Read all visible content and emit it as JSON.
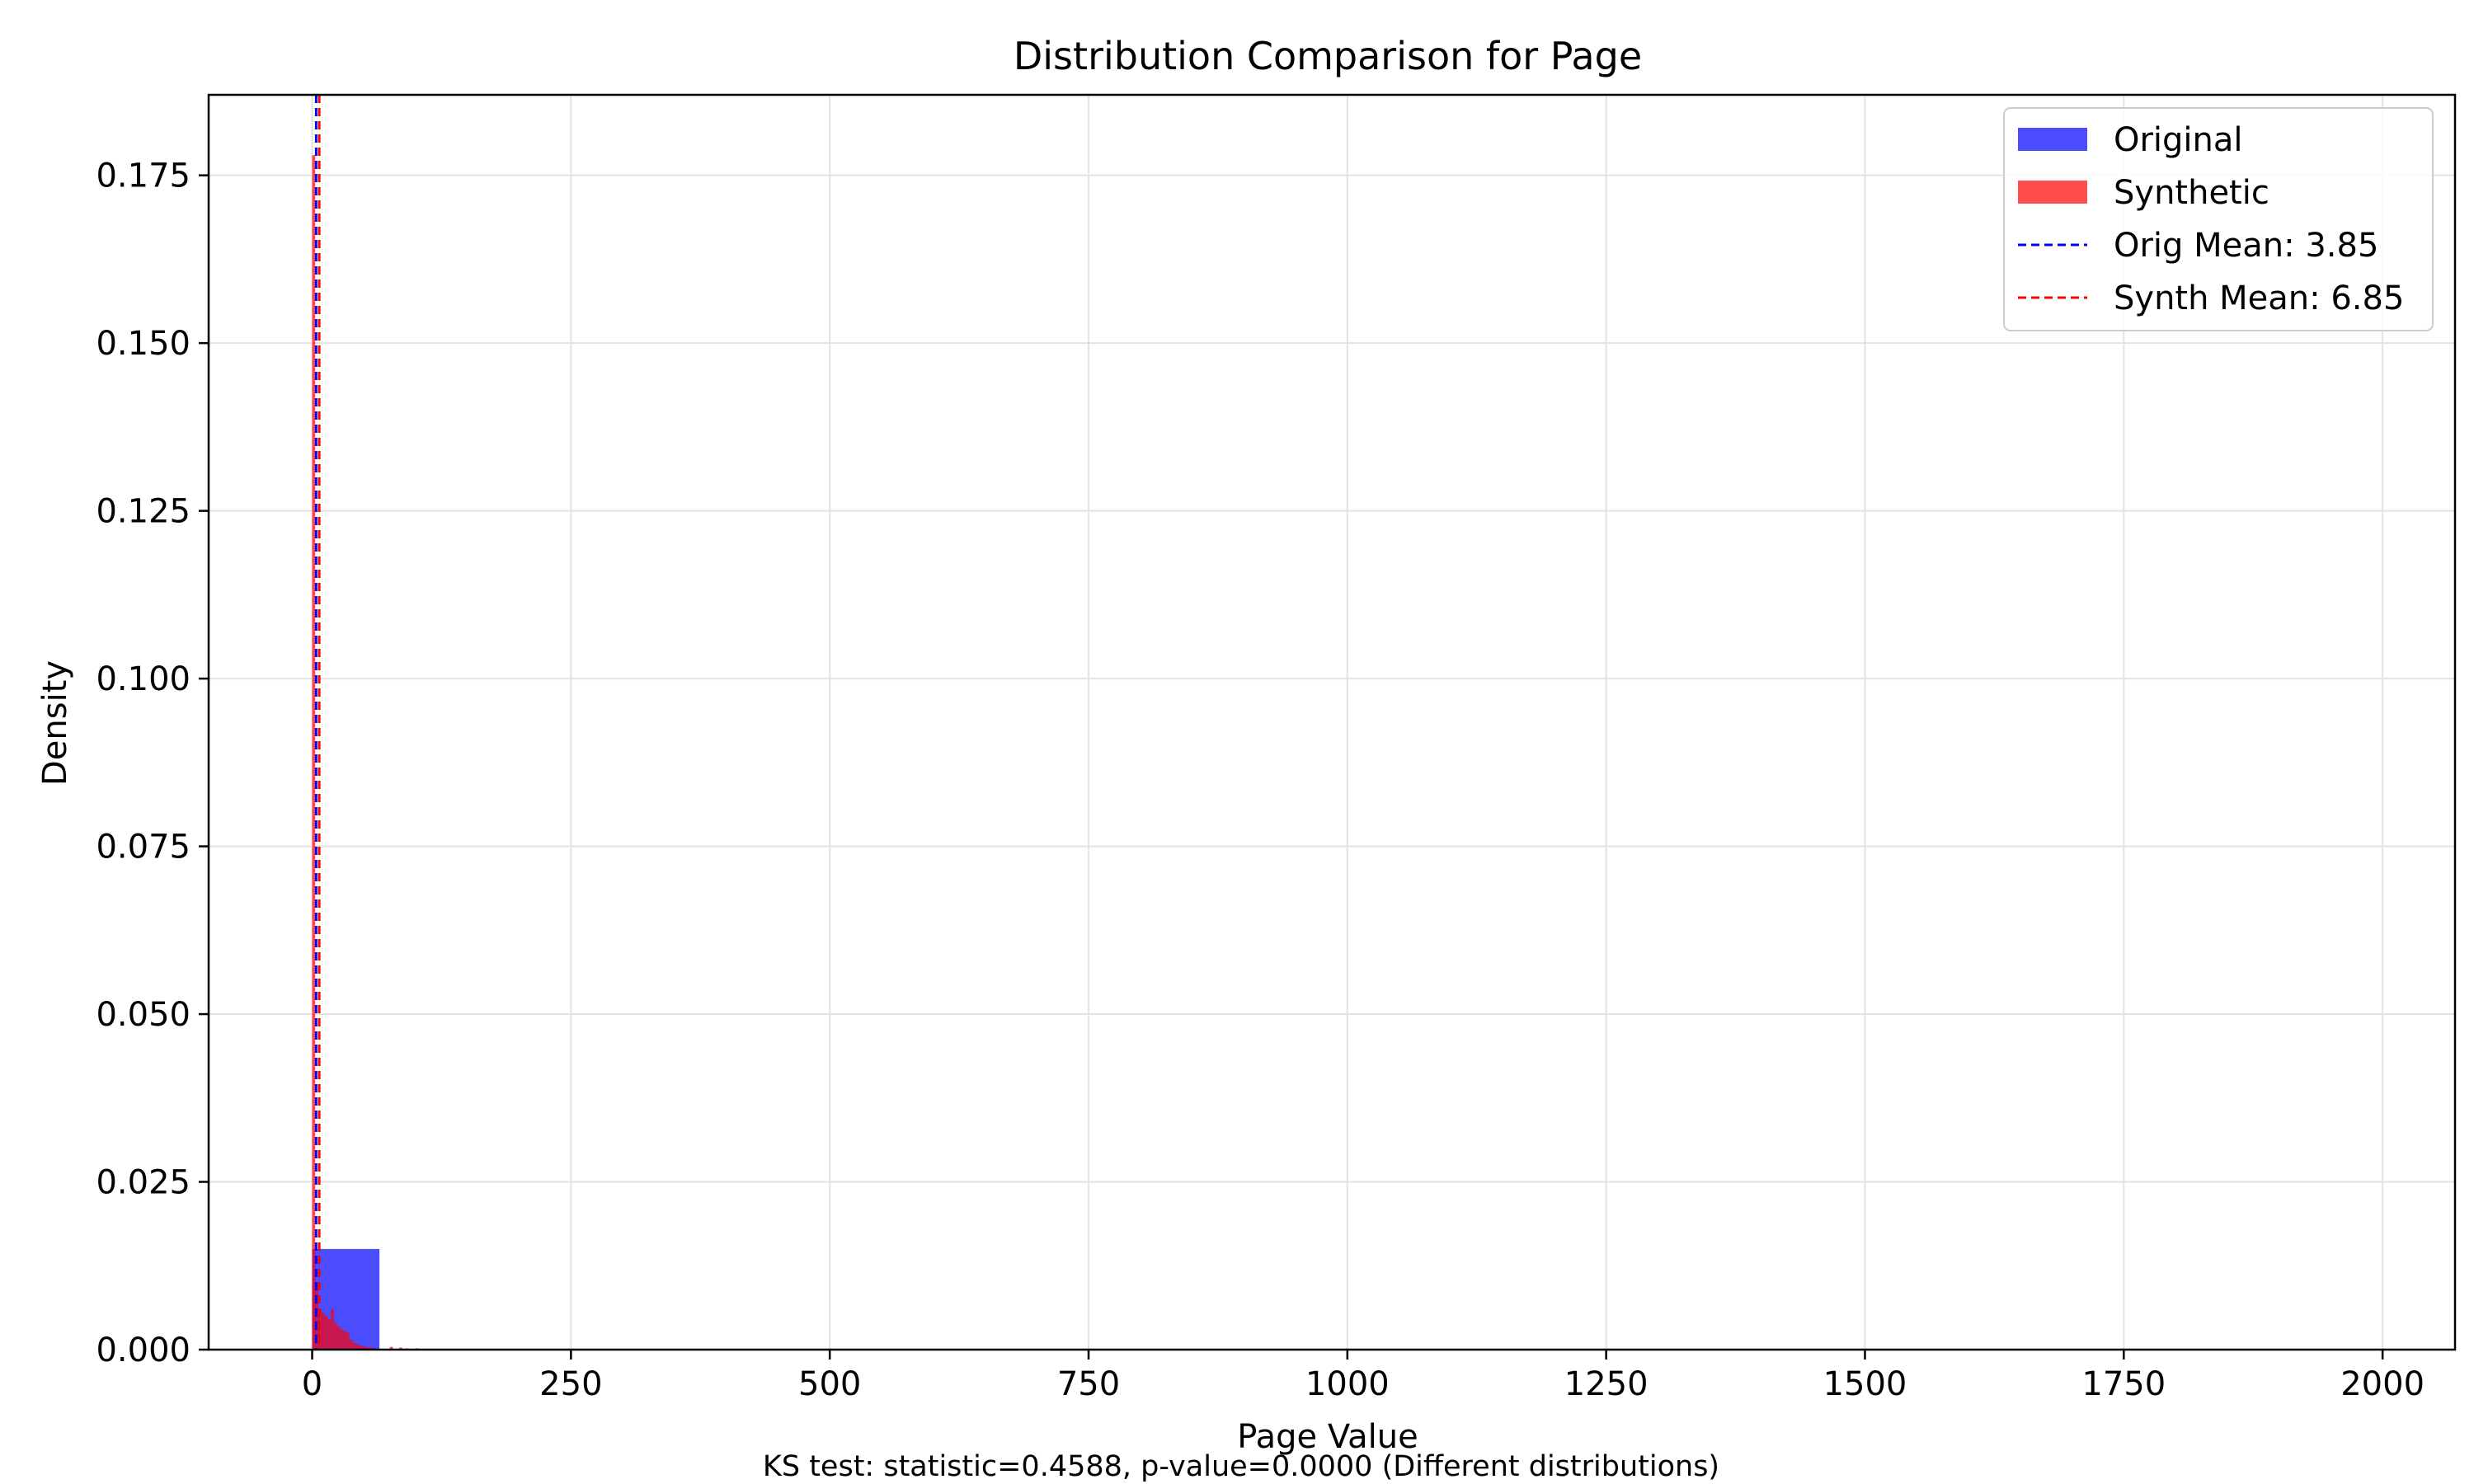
{
  "chart_data": {
    "type": "bar",
    "title": "Distribution Comparison for Page",
    "xlabel": "Page Value",
    "ylabel": "Density",
    "xlim": [
      -100,
      2070
    ],
    "ylim": [
      0,
      0.187
    ],
    "x_ticks": [
      0,
      250,
      500,
      750,
      1000,
      1250,
      1500,
      1750,
      2000
    ],
    "y_ticks": [
      0.0,
      0.025,
      0.05,
      0.075,
      0.1,
      0.125,
      0.15,
      0.175
    ],
    "x_tick_labels": [
      "0",
      "250",
      "500",
      "750",
      "1000",
      "1250",
      "1500",
      "1750",
      "2000"
    ],
    "y_tick_labels": [
      "0.000",
      "0.025",
      "0.050",
      "0.075",
      "0.100",
      "0.125",
      "0.150",
      "0.175"
    ],
    "grid": true,
    "legend_position": "top-right",
    "series": [
      {
        "name": "Original",
        "kind": "histogram",
        "color": "#0000ff",
        "bins": [
          {
            "x0": 0,
            "x1": 65,
            "density": 0.015
          }
        ]
      },
      {
        "name": "Synthetic",
        "kind": "histogram",
        "color": "#ff0000",
        "bins": [
          {
            "x0": 0,
            "x1": 3,
            "density": 0.178
          },
          {
            "x0": 3,
            "x1": 6,
            "density": 0.01
          },
          {
            "x0": 6,
            "x1": 9,
            "density": 0.006
          },
          {
            "x0": 9,
            "x1": 12,
            "density": 0.0055
          },
          {
            "x0": 12,
            "x1": 15,
            "density": 0.005
          },
          {
            "x0": 15,
            "x1": 18,
            "density": 0.0045
          },
          {
            "x0": 18,
            "x1": 21,
            "density": 0.006
          },
          {
            "x0": 21,
            "x1": 24,
            "density": 0.004
          },
          {
            "x0": 24,
            "x1": 27,
            "density": 0.0035
          },
          {
            "x0": 27,
            "x1": 30,
            "density": 0.003
          },
          {
            "x0": 30,
            "x1": 33,
            "density": 0.0028
          },
          {
            "x0": 33,
            "x1": 36,
            "density": 0.0025
          },
          {
            "x0": 36,
            "x1": 39,
            "density": 0.0015
          },
          {
            "x0": 39,
            "x1": 42,
            "density": 0.001
          },
          {
            "x0": 42,
            "x1": 45,
            "density": 0.0008
          },
          {
            "x0": 45,
            "x1": 48,
            "density": 0.0006
          },
          {
            "x0": 48,
            "x1": 51,
            "density": 0.0005
          },
          {
            "x0": 51,
            "x1": 54,
            "density": 0.0004
          },
          {
            "x0": 54,
            "x1": 57,
            "density": 0.0003
          },
          {
            "x0": 57,
            "x1": 60,
            "density": 0.0003
          },
          {
            "x0": 75,
            "x1": 78,
            "density": 0.0004
          },
          {
            "x0": 84,
            "x1": 87,
            "density": 0.0003
          },
          {
            "x0": 90,
            "x1": 93,
            "density": 0.0002
          },
          {
            "x0": 100,
            "x1": 103,
            "density": 0.0002
          },
          {
            "x0": 110,
            "x1": 113,
            "density": 0.0001
          }
        ]
      },
      {
        "name": "Orig Mean: 3.85",
        "kind": "vline",
        "color": "#0000ff",
        "x": 3.85
      },
      {
        "name": "Synth Mean: 6.85",
        "kind": "vline",
        "color": "#ff0000",
        "x": 6.85
      }
    ],
    "annotation": "KS test: statistic=0.4588, p-value=0.0000 (Different distributions)"
  }
}
